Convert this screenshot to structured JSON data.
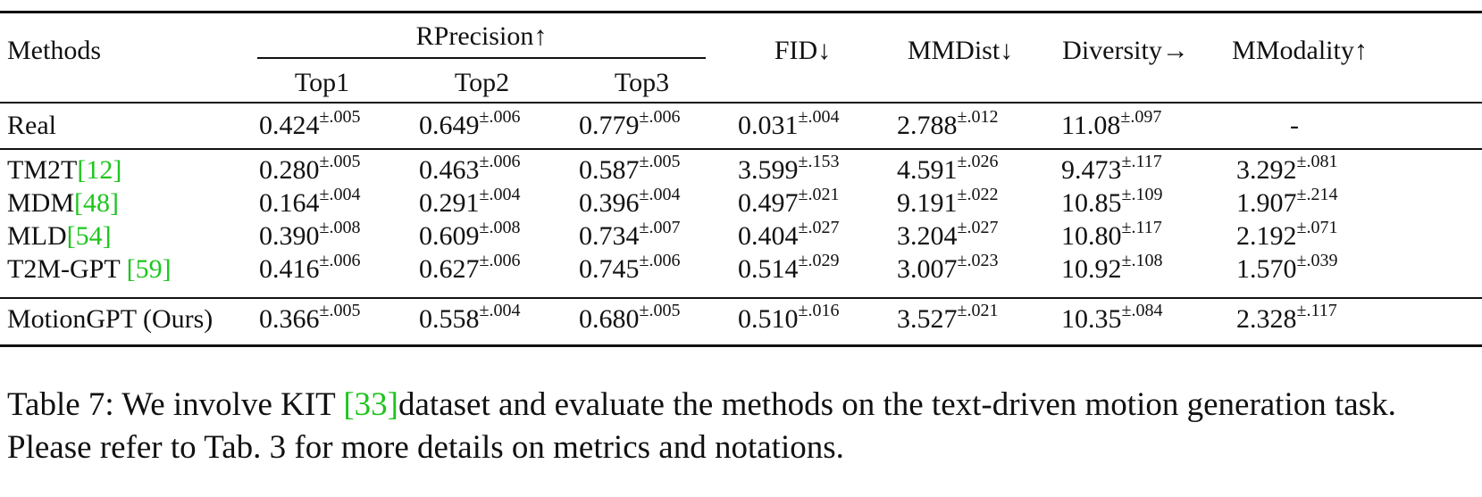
{
  "table": {
    "header": {
      "methods": "Methods",
      "rprecision": "RPrecision↑",
      "top1": "Top1",
      "top2": "Top2",
      "top3": "Top3",
      "fid": "FID↓",
      "mmdist": "MMDist↓",
      "diversity": "Diversity→",
      "mmodality": "MModality↑"
    },
    "rows": [
      {
        "method": "Real",
        "cite": "",
        "cells": [
          [
            "0.424",
            "±.005"
          ],
          [
            "0.649",
            "±.006"
          ],
          [
            "0.779",
            "±.006"
          ],
          [
            "0.031",
            "±.004"
          ],
          [
            "2.788",
            "±.012"
          ],
          [
            "11.08",
            "±.097"
          ],
          [
            "-",
            ""
          ]
        ]
      },
      {
        "method": "TM2T",
        "cite": "[12]",
        "cells": [
          [
            "0.280",
            "±.005"
          ],
          [
            "0.463",
            "±.006"
          ],
          [
            "0.587",
            "±.005"
          ],
          [
            "3.599",
            "±.153"
          ],
          [
            "4.591",
            "±.026"
          ],
          [
            "9.473",
            "±.117"
          ],
          [
            "3.292",
            "±.081"
          ]
        ]
      },
      {
        "method": "MDM",
        "cite": "[48]",
        "cells": [
          [
            "0.164",
            "±.004"
          ],
          [
            "0.291",
            "±.004"
          ],
          [
            "0.396",
            "±.004"
          ],
          [
            "0.497",
            "±.021"
          ],
          [
            "9.191",
            "±.022"
          ],
          [
            "10.85",
            "±.109"
          ],
          [
            "1.907",
            "±.214"
          ]
        ]
      },
      {
        "method": "MLD",
        "cite": "[54]",
        "cells": [
          [
            "0.390",
            "±.008"
          ],
          [
            "0.609",
            "±.008"
          ],
          [
            "0.734",
            "±.007"
          ],
          [
            "0.404",
            "±.027"
          ],
          [
            "3.204",
            "±.027"
          ],
          [
            "10.80",
            "±.117"
          ],
          [
            "2.192",
            "±.071"
          ]
        ]
      },
      {
        "method": "T2M-GPT ",
        "cite": "[59]",
        "cells": [
          [
            "0.416",
            "±.006"
          ],
          [
            "0.627",
            "±.006"
          ],
          [
            "0.745",
            "±.006"
          ],
          [
            "0.514",
            "±.029"
          ],
          [
            "3.007",
            "±.023"
          ],
          [
            "10.92",
            "±.108"
          ],
          [
            "1.570",
            "±.039"
          ]
        ]
      },
      {
        "method": "MotionGPT (Ours)",
        "cite": "",
        "cells": [
          [
            "0.366",
            "±.005"
          ],
          [
            "0.558",
            "±.004"
          ],
          [
            "0.680",
            "±.005"
          ],
          [
            "0.510",
            "±.016"
          ],
          [
            "3.527",
            "±.021"
          ],
          [
            "10.35",
            "±.084"
          ],
          [
            "2.328",
            "±.117"
          ]
        ]
      }
    ]
  },
  "caption": {
    "prefix": "Table 7: We involve KIT ",
    "cite": "[33]",
    "rest": "dataset and evaluate the methods on the text-driven motion generation task. Please refer to Tab. 3 for more details on metrics and notations."
  },
  "colors": {
    "citation": "#1ec51e",
    "text": "#111111"
  }
}
